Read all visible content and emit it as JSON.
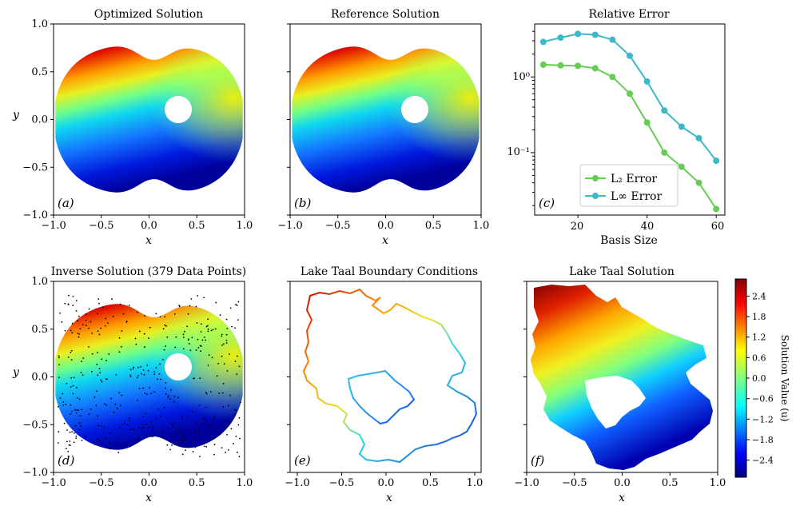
{
  "panels": {
    "a": {
      "title": "Optimized Solution",
      "label": "(a)"
    },
    "b": {
      "title": "Reference Solution",
      "label": "(b)"
    },
    "c": {
      "title": "Relative Error",
      "label": "(c)"
    },
    "d": {
      "title": "Inverse Solution (379 Data Points)",
      "label": "(d)"
    },
    "e": {
      "title": "Lake Taal Boundary Conditions",
      "label": "(e)"
    },
    "f": {
      "title": "Lake Taal Solution",
      "label": "(f)"
    }
  },
  "axis_labels": {
    "x": "x",
    "y": "y"
  },
  "ticks": {
    "x": [
      "−1.0",
      "−0.5",
      "0.0",
      "0.5",
      "1.0"
    ],
    "y": [
      "1.0",
      "0.5",
      "0.0",
      "−0.5",
      "−1.0"
    ]
  },
  "colors": {
    "l2": "#66cc55",
    "linf": "#3db8c8"
  },
  "chart_data": {
    "type": "line",
    "title": "Relative Error",
    "xlabel": "Basis Size",
    "ylabel": "",
    "yscale": "log",
    "xticks": [
      "20",
      "40",
      "60"
    ],
    "yticks": [
      "10⁰",
      "10⁻¹"
    ],
    "x": [
      10,
      15,
      20,
      25,
      30,
      35,
      40,
      45,
      50,
      55,
      60
    ],
    "series": [
      {
        "name": "L₂ Error",
        "values": [
          1.45,
          1.42,
          1.4,
          1.3,
          1.0,
          0.6,
          0.25,
          0.1,
          0.065,
          0.04,
          0.018
        ]
      },
      {
        "name": "L∞ Error",
        "values": [
          2.9,
          3.3,
          3.7,
          3.6,
          3.1,
          1.9,
          0.87,
          0.36,
          0.22,
          0.155,
          0.078
        ]
      }
    ],
    "legend_labels": [
      "L₂ Error",
      "L∞ Error"
    ],
    "legend": "lower-left"
  },
  "colorbar": {
    "label": "Solution Value (u)",
    "ticks": [
      "2.4",
      "1.8",
      "1.2",
      "0.6",
      "0.0",
      "−0.6",
      "−1.2",
      "−1.8",
      "−2.4"
    ],
    "range": [
      -2.9,
      2.9
    ]
  }
}
